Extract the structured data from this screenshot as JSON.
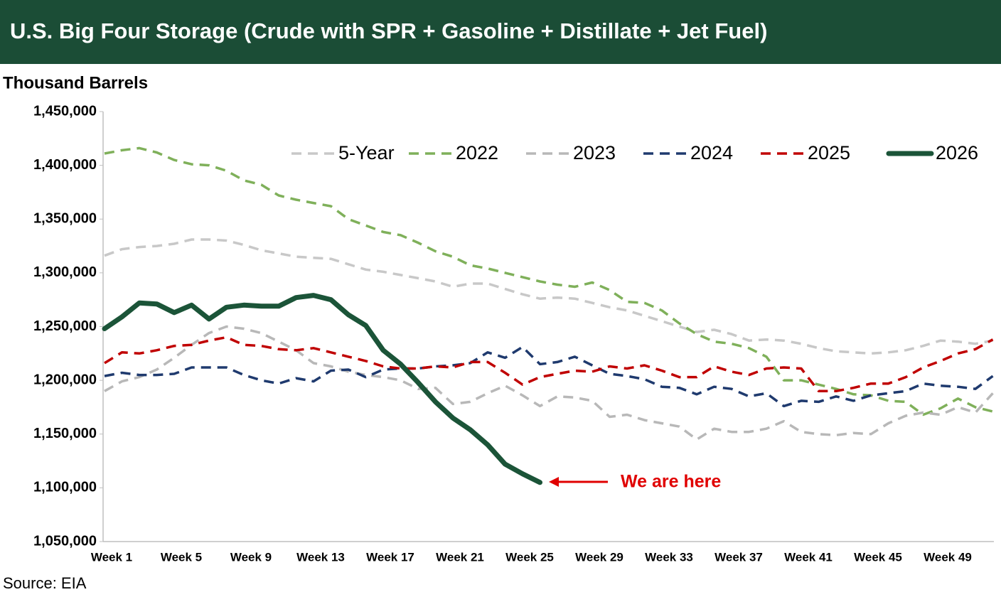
{
  "chart_data": {
    "type": "line",
    "title": "U.S. Big Four Storage (Crude with SPR + Gasoline + Distillate + Jet Fuel)",
    "y_label": "Thousand Barrels",
    "source": "Source: EIA",
    "annotation": "We are here",
    "legend": "upper right",
    "grid": false,
    "categories": [
      "Week 1",
      null,
      null,
      null,
      "Week 5",
      null,
      null,
      null,
      "Week 9",
      null,
      null,
      null,
      "Week 13",
      null,
      null,
      null,
      "Week 17",
      null,
      null,
      null,
      "Week 21",
      null,
      null,
      null,
      "Week 25",
      null,
      null,
      null,
      "Week 29",
      null,
      null,
      null,
      "Week 33",
      null,
      null,
      null,
      "Week 37",
      null,
      null,
      null,
      "Week 41",
      null,
      null,
      null,
      "Week 45",
      null,
      null,
      null,
      "Week 49",
      null,
      null,
      null
    ],
    "ylim": [
      1050000,
      1450000
    ],
    "yticks": [
      {
        "value": 1050000,
        "label": "1,050,000"
      },
      {
        "value": 1100000,
        "label": "1,100,000"
      },
      {
        "value": 1150000,
        "label": "1,150,000"
      },
      {
        "value": 1200000,
        "label": "1,200,000"
      },
      {
        "value": 1250000,
        "label": "1,250,000"
      },
      {
        "value": 1300000,
        "label": "1,300,000"
      },
      {
        "value": 1350000,
        "label": "1,350,000"
      },
      {
        "value": 1400000,
        "label": "1,400,000"
      },
      {
        "value": 1450000,
        "label": "1,450,000"
      }
    ],
    "series": [
      {
        "name": "5-Year",
        "color": "#c8c8c8",
        "dashed": true,
        "values": [
          1316000,
          1322000,
          1324000,
          1325000,
          1327000,
          1331000,
          1331000,
          1330000,
          1326000,
          1321000,
          1318000,
          1315000,
          1314000,
          1313000,
          1308000,
          1303000,
          1301000,
          1298000,
          1295000,
          1292000,
          1287000,
          1290000,
          1290000,
          1285000,
          1280000,
          1276000,
          1277000,
          1276000,
          1272000,
          1268000,
          1265000,
          1260000,
          1255000,
          1250000,
          1245000,
          1247000,
          1243000,
          1237000,
          1238000,
          1237000,
          1234000,
          1230000,
          1227000,
          1226000,
          1225000,
          1226000,
          1228000,
          1232000,
          1237000,
          1236000,
          1234000,
          1237000
        ]
      },
      {
        "name": "2022",
        "color": "#7fb05a",
        "dashed": true,
        "values": [
          1411000,
          1414000,
          1416000,
          1412000,
          1405000,
          1401000,
          1400000,
          1395000,
          1386000,
          1382000,
          1372000,
          1368000,
          1365000,
          1362000,
          1350000,
          1344000,
          1338000,
          1335000,
          1328000,
          1320000,
          1315000,
          1307000,
          1304000,
          1300000,
          1296000,
          1292000,
          1289000,
          1287000,
          1291000,
          1284000,
          1273000,
          1272000,
          1265000,
          1253000,
          1243000,
          1236000,
          1234000,
          1230000,
          1222000,
          1200000,
          1200000,
          1196000,
          1192000,
          1187000,
          1186000,
          1181000,
          1180000,
          1168000,
          1174000,
          1183000,
          1175000,
          1171000
        ]
      },
      {
        "name": "2023",
        "color": "#b8b8b8",
        "dashed": true,
        "values": [
          1190000,
          1199000,
          1203000,
          1210000,
          1221000,
          1233000,
          1244000,
          1250000,
          1248000,
          1244000,
          1236000,
          1228000,
          1216000,
          1213000,
          1208000,
          1205000,
          1203000,
          1200000,
          1192000,
          1193000,
          1178000,
          1180000,
          1188000,
          1195000,
          1186000,
          1176000,
          1185000,
          1184000,
          1181000,
          1166000,
          1168000,
          1163000,
          1160000,
          1157000,
          1145000,
          1155000,
          1152000,
          1152000,
          1155000,
          1162000,
          1152000,
          1150000,
          1149000,
          1151000,
          1150000,
          1160000,
          1167000,
          1170000,
          1168000,
          1175000,
          1170000,
          1188000
        ]
      },
      {
        "name": "2024",
        "color": "#1f3a6e",
        "dashed": true,
        "values": [
          1204000,
          1207000,
          1205000,
          1205000,
          1206000,
          1212000,
          1212000,
          1212000,
          1205000,
          1200000,
          1197000,
          1202000,
          1199000,
          1209000,
          1210000,
          1203000,
          1210000,
          1211000,
          1211000,
          1213000,
          1214000,
          1216000,
          1226000,
          1221000,
          1231000,
          1215000,
          1217000,
          1222000,
          1214000,
          1206000,
          1204000,
          1201000,
          1194000,
          1193000,
          1187000,
          1194000,
          1192000,
          1185000,
          1188000,
          1176000,
          1181000,
          1180000,
          1185000,
          1181000,
          1186000,
          1188000,
          1190000,
          1197000,
          1195000,
          1194000,
          1192000,
          1204000
        ]
      },
      {
        "name": "2025",
        "color": "#c00000",
        "dashed": true,
        "values": [
          1216000,
          1226000,
          1225000,
          1228000,
          1232000,
          1233000,
          1237000,
          1240000,
          1233000,
          1232000,
          1229000,
          1228000,
          1230000,
          1226000,
          1222000,
          1218000,
          1213000,
          1211000,
          1211000,
          1213000,
          1212000,
          1217000,
          1217000,
          1207000,
          1196000,
          1203000,
          1206000,
          1209000,
          1208000,
          1213000,
          1211000,
          1214000,
          1209000,
          1203000,
          1203000,
          1213000,
          1208000,
          1205000,
          1211000,
          1212000,
          1211000,
          1190000,
          1190000,
          1193000,
          1197000,
          1197000,
          1203000,
          1212000,
          1218000,
          1225000,
          1229000,
          1238000
        ]
      },
      {
        "name": "2026",
        "color": "#1b5438",
        "dashed": false,
        "values": [
          1248000,
          1259000,
          1272000,
          1271000,
          1263000,
          1270000,
          1257000,
          1268000,
          1270000,
          1269000,
          1269000,
          1277000,
          1279000,
          1275000,
          1261000,
          1251000,
          1228000,
          1215000,
          1198000,
          1180000,
          1165000,
          1154000,
          1140000,
          1122000,
          1113000,
          1105000,
          null,
          null,
          null,
          null,
          null,
          null,
          null,
          null,
          null,
          null,
          null,
          null,
          null,
          null,
          null,
          null,
          null,
          null,
          null,
          null,
          null,
          null,
          null,
          null,
          null,
          null
        ]
      }
    ]
  }
}
